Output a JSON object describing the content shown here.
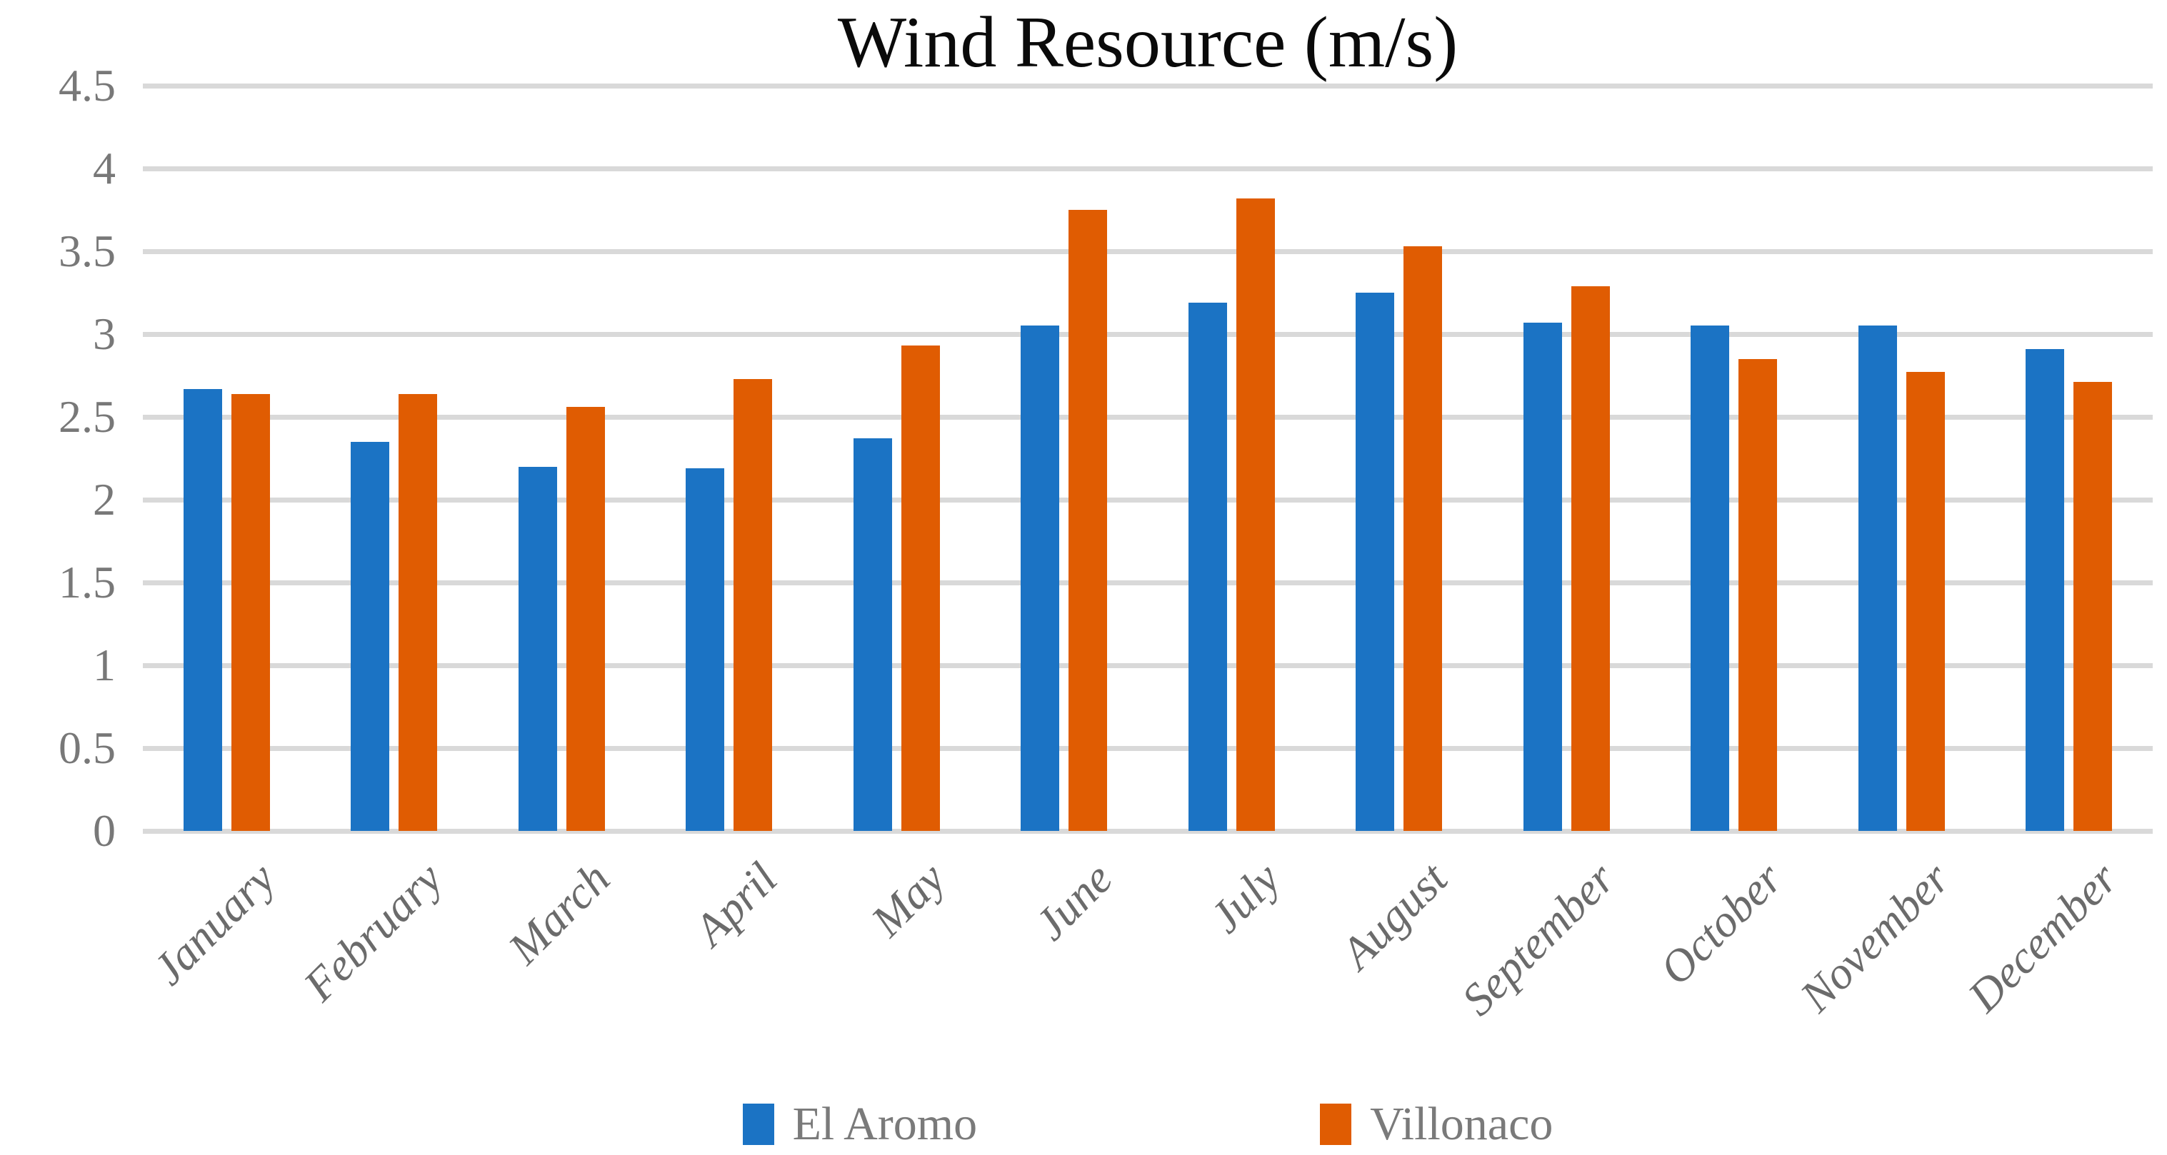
{
  "chart_data": {
    "type": "bar",
    "title": "Wind Resource (m/s)",
    "categories": [
      "January",
      "February",
      "March",
      "April",
      "May",
      "June",
      "July",
      "August",
      "September",
      "October",
      "November",
      "December"
    ],
    "series": [
      {
        "name": "El Aromo",
        "color": "#1b73c4",
        "values": [
          2.67,
          2.35,
          2.2,
          2.19,
          2.37,
          3.05,
          3.19,
          3.25,
          3.07,
          3.05,
          3.05,
          2.91
        ]
      },
      {
        "name": "Villonaco",
        "color": "#e05c02",
        "values": [
          2.64,
          2.64,
          2.56,
          2.73,
          2.93,
          3.75,
          3.82,
          3.53,
          3.29,
          2.85,
          2.77,
          2.71
        ]
      }
    ],
    "xlabel": "",
    "ylabel": "",
    "ylim": [
      0,
      4.5
    ],
    "yticks": [
      0,
      0.5,
      1,
      1.5,
      2,
      2.5,
      3,
      3.5,
      4,
      4.5
    ],
    "ytick_labels": [
      "0",
      "0.5",
      "1",
      "1.5",
      "2",
      "2.5",
      "3",
      "3.5",
      "4",
      "4.5"
    ],
    "grid": true,
    "gridline_color": "#d9d9d9",
    "axis_text_color": "#787878",
    "month_label_color": "#6b6b6b",
    "legend_text_color": "#7a7a7a",
    "title_color": "#0a0a0a",
    "legend_position": "bottom"
  }
}
